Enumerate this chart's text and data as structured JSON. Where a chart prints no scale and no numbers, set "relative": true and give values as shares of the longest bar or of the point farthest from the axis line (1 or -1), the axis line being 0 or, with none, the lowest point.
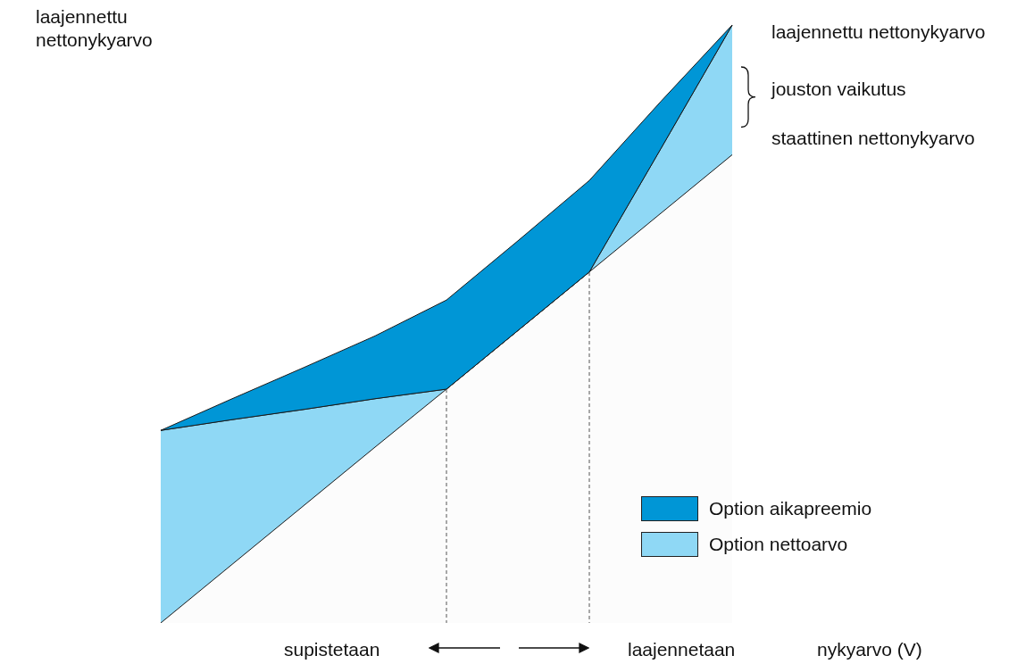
{
  "chart_data": {
    "type": "area",
    "relative": true,
    "stacked": true,
    "xlabel": "nykyarvo (V)",
    "categories": [
      null,
      null,
      null,
      null,
      null,
      null,
      null,
      null,
      null,
      null,
      null,
      null
    ],
    "series": [
      {
        "color": "#fcfcfc",
        "values": [
          0,
          0.098,
          0.196,
          0.294,
          0.391,
          0.489,
          0.587,
          0.685,
          0.783,
          null,
          null,
          null
        ]
      },
      {
        "name": "Option nettoarvo",
        "color": "#8fd8f5",
        "values": [
          0.322,
          0.242,
          0.161,
          0.081,
          0,
          0,
          0,
          0.108,
          0.217,
          null,
          null,
          null
        ]
      },
      {
        "name": "Option aikapreemio",
        "color": "#0096d6",
        "values": [
          0,
          0.035,
          0.07,
          0.105,
          0.149,
          0.15,
          0.153,
          0.079,
          0,
          null,
          null,
          null
        ]
      }
    ],
    "legend": "bottom right",
    "annotations": [
      "laajennettu nettonykyarvo",
      "laajennettu nettonykyarvo",
      "jouston vaikutus",
      "staattinen nettonykyarvo",
      "supistetaan",
      "laajennetaan"
    ]
  }
}
